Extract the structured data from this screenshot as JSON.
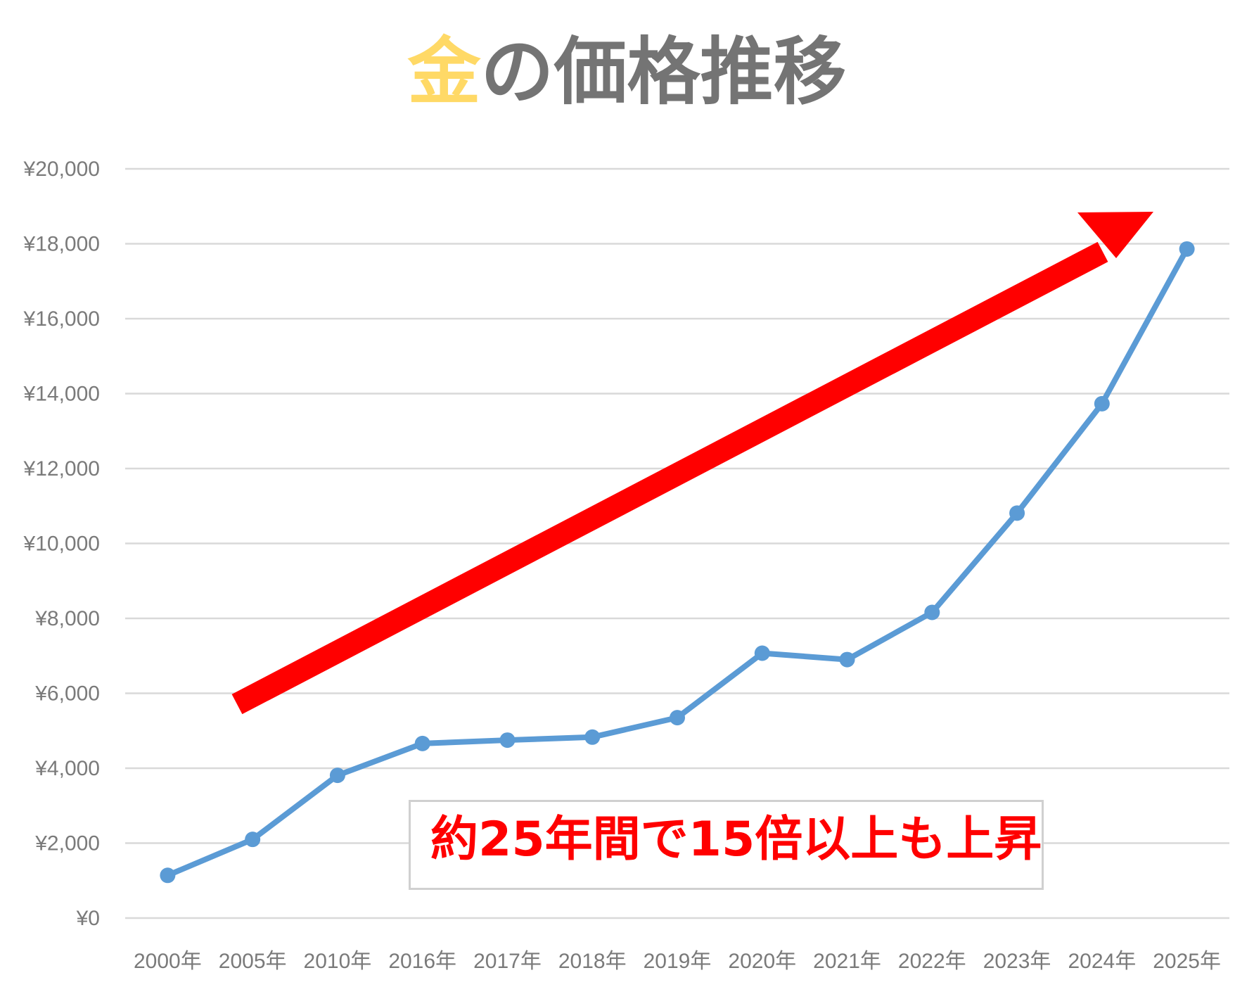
{
  "title": {
    "accent": "金",
    "rest": "の価格推移"
  },
  "colors": {
    "title_accent": "#ffd966",
    "title_text": "#747474",
    "line": "#5b9bd5",
    "arrow": "#ff0000",
    "grid": "#d9d9d9",
    "annotation": "#ff0000"
  },
  "annotation": {
    "text": "約25年間で15倍以上も上昇"
  },
  "arrow": {
    "direction": "up-right",
    "color": "#ff0000"
  },
  "chart_data": {
    "type": "line",
    "title": "金の価格推移",
    "categories": [
      "2000年",
      "2005年",
      "2010年",
      "2016年",
      "2017年",
      "2018年",
      "2019年",
      "2020年",
      "2021年",
      "2022年",
      "2023年",
      "2024年",
      "2025年"
    ],
    "series": [
      {
        "values": [
          1140,
          2100,
          3810,
          4660,
          4750,
          4830,
          5350,
          7070,
          6900,
          8160,
          10810,
          13730,
          17860
        ]
      }
    ],
    "ylim": [
      0,
      20000
    ],
    "y_ticks": [
      "¥0",
      "¥2,000",
      "¥4,000",
      "¥6,000",
      "¥8,000",
      "¥10,000",
      "¥12,000",
      "¥14,000",
      "¥16,000",
      "¥18,000",
      "¥20,000"
    ],
    "y_tick_values": [
      0,
      2000,
      4000,
      6000,
      8000,
      10000,
      12000,
      14000,
      16000,
      18000,
      20000
    ],
    "grid": true,
    "legend": "none",
    "xlabel": "",
    "ylabel": ""
  }
}
